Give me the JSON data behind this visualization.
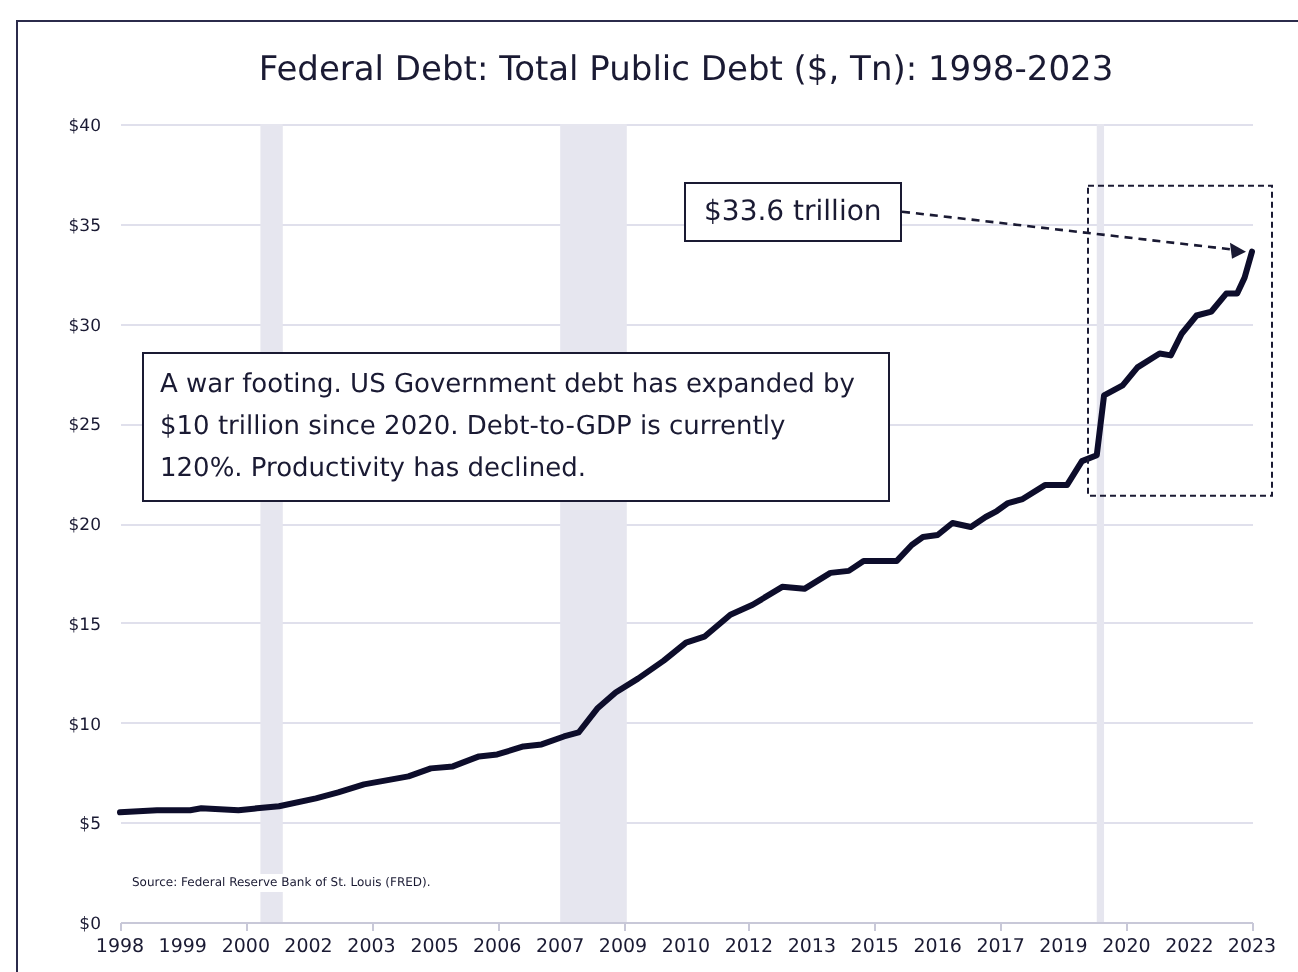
{
  "chart_data": {
    "type": "line",
    "title": "Federal Debt: Total Public Debt ($, Tn): 1998-2023",
    "x": [
      "1998-01",
      "1998-11",
      "1999-08",
      "1999-11",
      "2000-09",
      "2001-02",
      "2001-08",
      "2002-06",
      "2002-12",
      "2003-07",
      "2004-07",
      "2005-01",
      "2005-07",
      "2006-02",
      "2006-07",
      "2007-02",
      "2007-07",
      "2008-01",
      "2008-05",
      "2008-10",
      "2009-03",
      "2009-09",
      "2010-04",
      "2010-10",
      "2011-03",
      "2011-10",
      "2012-04",
      "2012-12",
      "2013-06",
      "2014-01",
      "2014-06",
      "2014-10",
      "2015-07",
      "2015-11",
      "2016-02",
      "2016-06",
      "2016-10",
      "2017-03",
      "2017-07",
      "2017-10",
      "2018-01",
      "2018-05",
      "2018-11",
      "2019-05",
      "2019-09",
      "2020-01",
      "2020-03",
      "2020-08",
      "2020-12",
      "2021-06",
      "2021-09",
      "2021-12",
      "2022-04",
      "2022-08",
      "2022-12",
      "2023-03",
      "2023-05",
      "2023-07"
    ],
    "series": [
      {
        "color": "#0d0d2b",
        "values": [
          5.5,
          5.6,
          5.6,
          5.7,
          5.6,
          5.7,
          5.8,
          6.2,
          6.5,
          6.9,
          7.3,
          7.7,
          7.8,
          8.3,
          8.4,
          8.8,
          8.9,
          9.3,
          9.5,
          10.7,
          11.5,
          12.2,
          13.1,
          14.0,
          14.3,
          15.4,
          15.9,
          16.8,
          16.7,
          17.5,
          17.6,
          18.1,
          18.1,
          18.9,
          19.3,
          19.4,
          20.0,
          19.8,
          20.3,
          20.6,
          21.0,
          21.2,
          21.9,
          21.9,
          23.1,
          23.4,
          26.4,
          26.9,
          27.8,
          28.5,
          28.4,
          29.5,
          30.4,
          30.6,
          31.5,
          31.5,
          32.3,
          33.6
        ]
      }
    ],
    "xlim": [
      "1998-01",
      "2023-07"
    ],
    "xticks": [
      {
        "value": "1998-01",
        "label": "1998"
      },
      {
        "value": "1999-06",
        "label": "1999"
      },
      {
        "value": "2000-11",
        "label": "2000"
      },
      {
        "value": "2002-04",
        "label": "2002"
      },
      {
        "value": "2003-09",
        "label": "2003"
      },
      {
        "value": "2005-02",
        "label": "2005"
      },
      {
        "value": "2006-07",
        "label": "2006"
      },
      {
        "value": "2007-12",
        "label": "2007"
      },
      {
        "value": "2009-05",
        "label": "2009"
      },
      {
        "value": "2010-10",
        "label": "2010"
      },
      {
        "value": "2012-03",
        "label": "2012"
      },
      {
        "value": "2013-08",
        "label": "2013"
      },
      {
        "value": "2015-01",
        "label": "2015"
      },
      {
        "value": "2016-06",
        "label": "2016"
      },
      {
        "value": "2017-11",
        "label": "2017"
      },
      {
        "value": "2019-04",
        "label": "2019"
      },
      {
        "value": "2020-09",
        "label": "2020"
      },
      {
        "value": "2022-02",
        "label": "2022"
      },
      {
        "value": "2023-07",
        "label": "2023"
      }
    ],
    "ylim": [
      0,
      40
    ],
    "yticks": [
      {
        "value": 0,
        "label": "$0"
      },
      {
        "value": 5,
        "label": "$5"
      },
      {
        "value": 10,
        "label": "$10"
      },
      {
        "value": 15,
        "label": "$15"
      },
      {
        "value": 20,
        "label": "$20"
      },
      {
        "value": 25,
        "label": "$25"
      },
      {
        "value": 30,
        "label": "$30"
      },
      {
        "value": 35,
        "label": "$35"
      },
      {
        "value": 40,
        "label": "$40"
      }
    ],
    "grid": "y",
    "bands": [
      {
        "axis": "x",
        "from": "2001-03",
        "to": "2001-09",
        "color": "#e6e6ef"
      },
      {
        "axis": "x",
        "from": "2007-12",
        "to": "2009-06",
        "color": "#e6e6ef"
      },
      {
        "axis": "x",
        "from": "2020-01",
        "to": "2020-03",
        "color": "#e6e6ef"
      }
    ],
    "annotations": [
      "A war footing. US Government debt has expanded by $10 trillion since 2020. Debt-to-GDP is currently 120%. Productivity has declined.",
      "$33.6 trillion",
      "Source: Federal Reserve Bank of St. Louis (FRED)."
    ]
  }
}
